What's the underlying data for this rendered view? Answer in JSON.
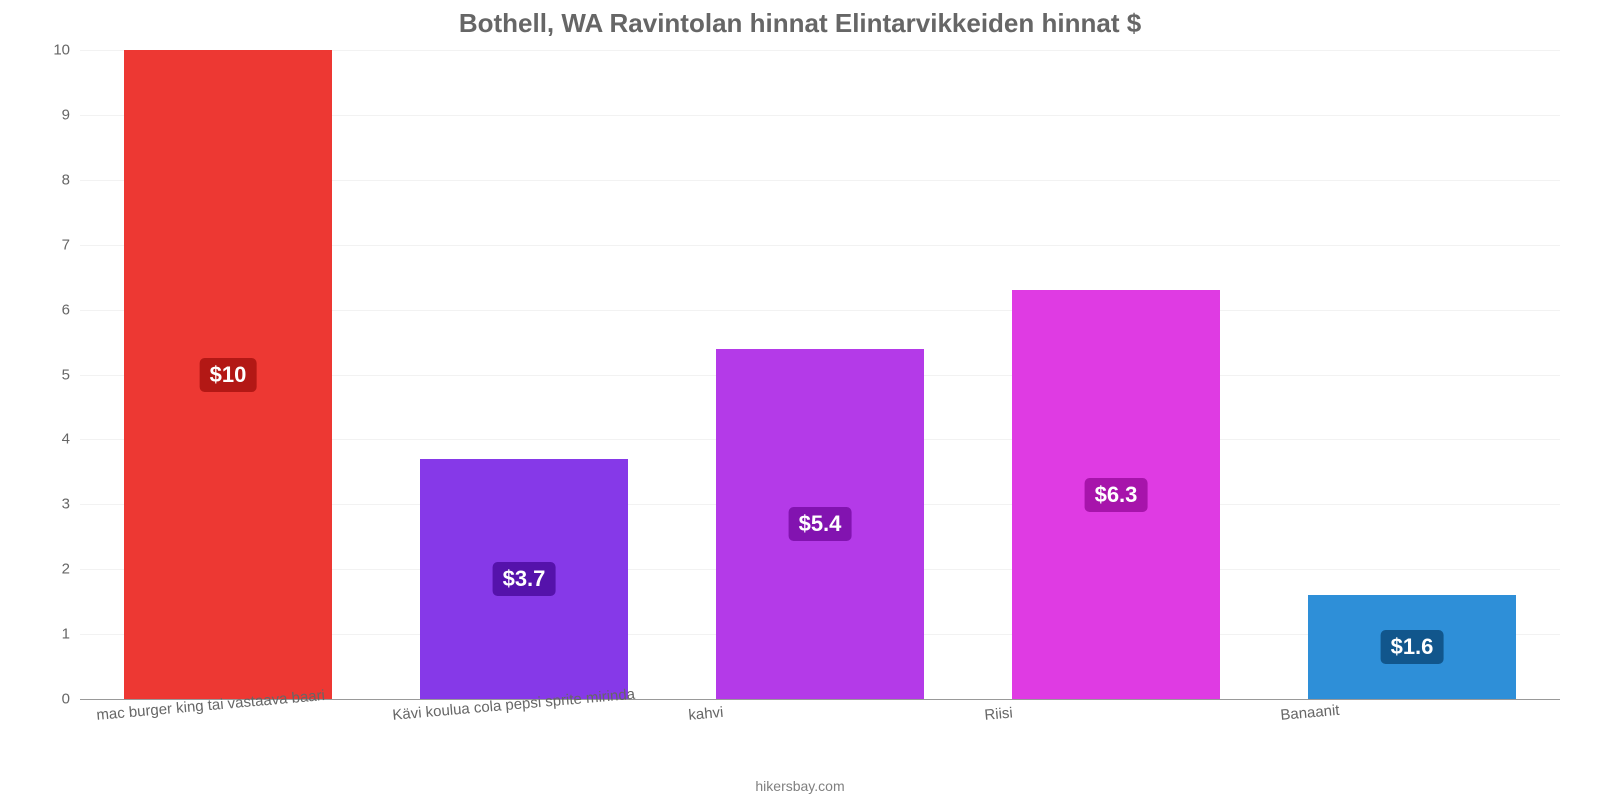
{
  "chart": {
    "type": "bar",
    "title": "Bothell, WA Ravintolan hinnat Elintarvikkeiden hinnat $",
    "title_color": "#666666",
    "title_fontsize": 26,
    "background_color": "#ffffff",
    "grid_color": "#f2f2f2",
    "axis_color": "#999999",
    "tick_color": "#666666",
    "tick_fontsize": 15,
    "ylim": [
      0,
      10
    ],
    "ytick_step": 1,
    "bar_width": 0.7,
    "credit": "hikersbay.com",
    "categories": [
      "mac burger king tai vastaava baari",
      "Kävi koulua cola pepsi sprite mirinda",
      "kahvi",
      "Riisi",
      "Banaanit"
    ],
    "values": [
      10,
      3.7,
      5.4,
      6.3,
      1.6
    ],
    "value_labels": [
      "$10",
      "$3.7",
      "$5.4",
      "$6.3",
      "$1.6"
    ],
    "bar_colors": [
      "#ed3833",
      "#8639e8",
      "#b43ae8",
      "#df3be3",
      "#2e8fd8"
    ],
    "label_bg_colors": [
      "#b31815",
      "#5512ab",
      "#8213b0",
      "#a714ab",
      "#11568c"
    ],
    "label_fontsize": 22
  }
}
